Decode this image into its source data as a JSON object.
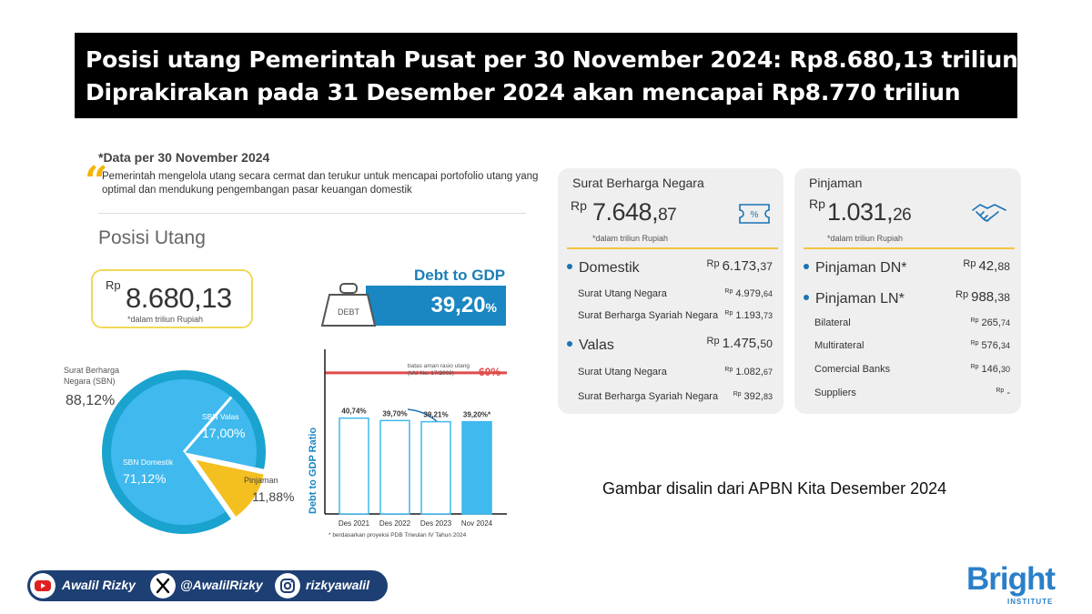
{
  "headline": {
    "line1": "Posisi utang Pemerintah Pusat per 30 November 2024: Rp8.680,13 triliun",
    "line2": "Diprakirakan pada 31 Desember 2024 akan mencapai Rp8.770 triliun"
  },
  "note": "*Data per 30 November 2024",
  "intro": "Pemerintah mengelola utang secara cermat dan terukur untuk mencapai portofolio utang yang optimal dan mendukung pengembangan pasar keuangan domestik",
  "posisi": {
    "title": "Posisi Utang",
    "rp": "Rp",
    "value": "8.680,13",
    "unit": "*dalam triliun Rupiah"
  },
  "debt_icon_label": "DEBT",
  "debt_to_gdp": {
    "title": "Debt to GDP",
    "value": "39,20",
    "suffix": "%"
  },
  "chart_data": [
    {
      "type": "pie",
      "categories": [
        "SBN Domestik",
        "SBN Valas",
        "Pinjaman"
      ],
      "values": [
        71.12,
        17.0,
        11.88
      ],
      "labels": [
        "71,12%",
        "17,00%",
        "11,88%"
      ],
      "group": {
        "name": "Surat Berharga Negara (SBN)",
        "value": 88.12,
        "label": "88,12%"
      },
      "colors": [
        "#3fb9ee",
        "#3fb9ee",
        "#f4c020"
      ],
      "outer_color": "#1aa3cf"
    },
    {
      "type": "bar",
      "categories": [
        "Des 2021",
        "Des 2022",
        "Des 2023",
        "Nov 2024"
      ],
      "values": [
        40.74,
        39.7,
        39.21,
        39.2
      ],
      "labels": [
        "40,74%",
        "39,70%",
        "39,21%",
        "39,20%*"
      ],
      "ylabel": "Debt to GDP Ratio",
      "ylim": [
        0,
        70
      ],
      "threshold": {
        "value": 60,
        "label": "60%",
        "text": "batas aman rasio utang",
        "subtext": "(UU No. 17/2003)"
      },
      "footnote": "*  berdasarkan proyeksi PDB Triwulan IV Tahun 2024",
      "colors": {
        "bar": "#ffffff",
        "bar_border": "#3fb9ee",
        "highlight": "#3fb9ee",
        "threshold": "#e04a4a"
      }
    }
  ],
  "sbn_card": {
    "title": "Surat Berharga Negara",
    "rp": "Rp",
    "value_main": "7.648,",
    "value_dec": "87",
    "unit": "*dalam triliun Rupiah",
    "rows": [
      {
        "label": "Domestik",
        "rp": "Rp",
        "main": "6.173,",
        "dec": "37",
        "big": true
      },
      {
        "label": "Surat Utang Negara",
        "rp": "Rp",
        "main": "4.979,",
        "dec": "64",
        "big": false
      },
      {
        "label": "Surat Berharga Syariah Negara",
        "rp": "Rp",
        "main": "1.193,",
        "dec": "73",
        "big": false
      },
      {
        "label": "Valas",
        "rp": "Rp",
        "main": "1.475,",
        "dec": "50",
        "big": true
      },
      {
        "label": "Surat Utang Negara",
        "rp": "Rp",
        "main": "1.082,",
        "dec": "67",
        "big": false
      },
      {
        "label": "Surat Berharga Syariah Negara",
        "rp": "Rp",
        "main": "392,",
        "dec": "83",
        "big": false
      }
    ]
  },
  "pinjaman_card": {
    "title": "Pinjaman",
    "rp": "Rp",
    "value_main": "1.031,",
    "value_dec": "26",
    "unit": "*dalam triliun Rupiah",
    "rows": [
      {
        "label": "Pinjaman DN*",
        "rp": "Rp",
        "main": "42,",
        "dec": "88",
        "big": true
      },
      {
        "label": "Pinjaman LN*",
        "rp": "Rp",
        "main": "988,",
        "dec": "38",
        "big": true
      },
      {
        "label": "Bilateral",
        "rp": "Rp",
        "main": "265,",
        "dec": "74",
        "big": false
      },
      {
        "label": "Multirateral",
        "rp": "Rp",
        "main": "576,",
        "dec": "34",
        "big": false
      },
      {
        "label": "Comercial Banks",
        "rp": "Rp",
        "main": "146,",
        "dec": "30",
        "big": false
      },
      {
        "label": "Suppliers",
        "rp": "Rp",
        "main": "-",
        "dec": "",
        "big": false
      }
    ]
  },
  "source": "Gambar disalin dari APBN Kita Desember 2024",
  "social": {
    "youtube": "Awalil Rizky",
    "x": "@AwalilRizky",
    "instagram": "rizkyawalil"
  },
  "brand": {
    "name": "Bright",
    "sub": "INSTITUTE"
  }
}
